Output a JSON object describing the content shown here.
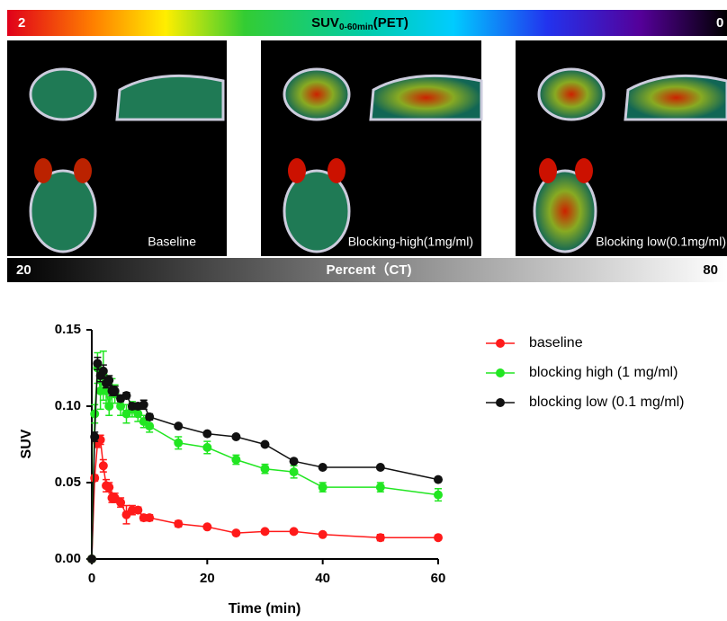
{
  "header": {
    "pet_bar": {
      "min_label": "2",
      "title": "SUV",
      "subscript": "0-60min",
      "title_suffix": "(PET)",
      "max_label": "0"
    },
    "panels": [
      "Baseline",
      "Blocking-high(1mg/ml)",
      "Blocking low(0.1mg/ml)"
    ],
    "ct_bar": {
      "min_label": "20",
      "title": "Percent（CT)",
      "max_label": "80"
    }
  },
  "chart_data": {
    "type": "line",
    "x_label": "Time (min)",
    "y_label": "SUV",
    "x": [
      0,
      0.5,
      1,
      1.5,
      2,
      2.5,
      3,
      3.5,
      4,
      5,
      6,
      7,
      8,
      9,
      10,
      15,
      20,
      25,
      30,
      35,
      40,
      50,
      60
    ],
    "series": [
      {
        "name": "baseline",
        "color": "#ff1a1a",
        "values": [
          0,
          0.053,
          0.076,
          0.078,
          0.061,
          0.048,
          0.047,
          0.04,
          0.04,
          0.037,
          0.029,
          0.032,
          0.032,
          0.027,
          0.027,
          0.023,
          0.021,
          0.017,
          0.018,
          0.018,
          0.016,
          0.014,
          0.014
        ],
        "errors": [
          0,
          0.002,
          0.003,
          0.003,
          0.004,
          0.004,
          0.003,
          0.003,
          0.003,
          0.003,
          0.006,
          0.003,
          0.002,
          0.002,
          0.002,
          0.002,
          0.001,
          0.001,
          0.001,
          0.001,
          0.001,
          0.002,
          0.001
        ]
      },
      {
        "name": "blocking high (1 mg/ml)",
        "color": "#22e622",
        "values": [
          0,
          0.095,
          0.125,
          0.11,
          0.12,
          0.11,
          0.1,
          0.11,
          0.108,
          0.1,
          0.095,
          0.098,
          0.095,
          0.09,
          0.087,
          0.076,
          0.073,
          0.065,
          0.059,
          0.057,
          0.047,
          0.047,
          0.042
        ],
        "errors": [
          0,
          0.006,
          0.01,
          0.012,
          0.016,
          0.008,
          0.006,
          0.008,
          0.006,
          0.006,
          0.006,
          0.005,
          0.005,
          0.004,
          0.004,
          0.004,
          0.004,
          0.003,
          0.003,
          0.004,
          0.003,
          0.003,
          0.004
        ]
      },
      {
        "name": "blocking low (0.1 mg/ml)",
        "color": "#111111",
        "values": [
          0,
          0.08,
          0.128,
          0.12,
          0.123,
          0.115,
          0.117,
          0.11,
          0.11,
          0.105,
          0.107,
          0.1,
          0.1,
          0.101,
          0.093,
          0.087,
          0.082,
          0.08,
          0.075,
          0.064,
          0.06,
          0.06,
          0.052
        ],
        "errors": [
          0,
          0.003,
          0.004,
          0.004,
          0.004,
          0.003,
          0.003,
          0.003,
          0.003,
          0.002,
          0.002,
          0.002,
          0.002,
          0.003,
          0.002,
          0.001,
          0.001,
          0.001,
          0.001,
          0.001,
          0.001,
          0.001,
          0.001
        ]
      }
    ],
    "xlim": [
      0,
      60
    ],
    "ylim": [
      0,
      0.15
    ],
    "xticks": [
      0,
      20,
      40,
      60
    ],
    "yticks": [
      {
        "value": 0,
        "label": "0.00"
      },
      {
        "value": 0.05,
        "label": "0.05"
      },
      {
        "value": 0.1,
        "label": "0.10"
      },
      {
        "value": 0.15,
        "label": "0.15"
      }
    ]
  }
}
